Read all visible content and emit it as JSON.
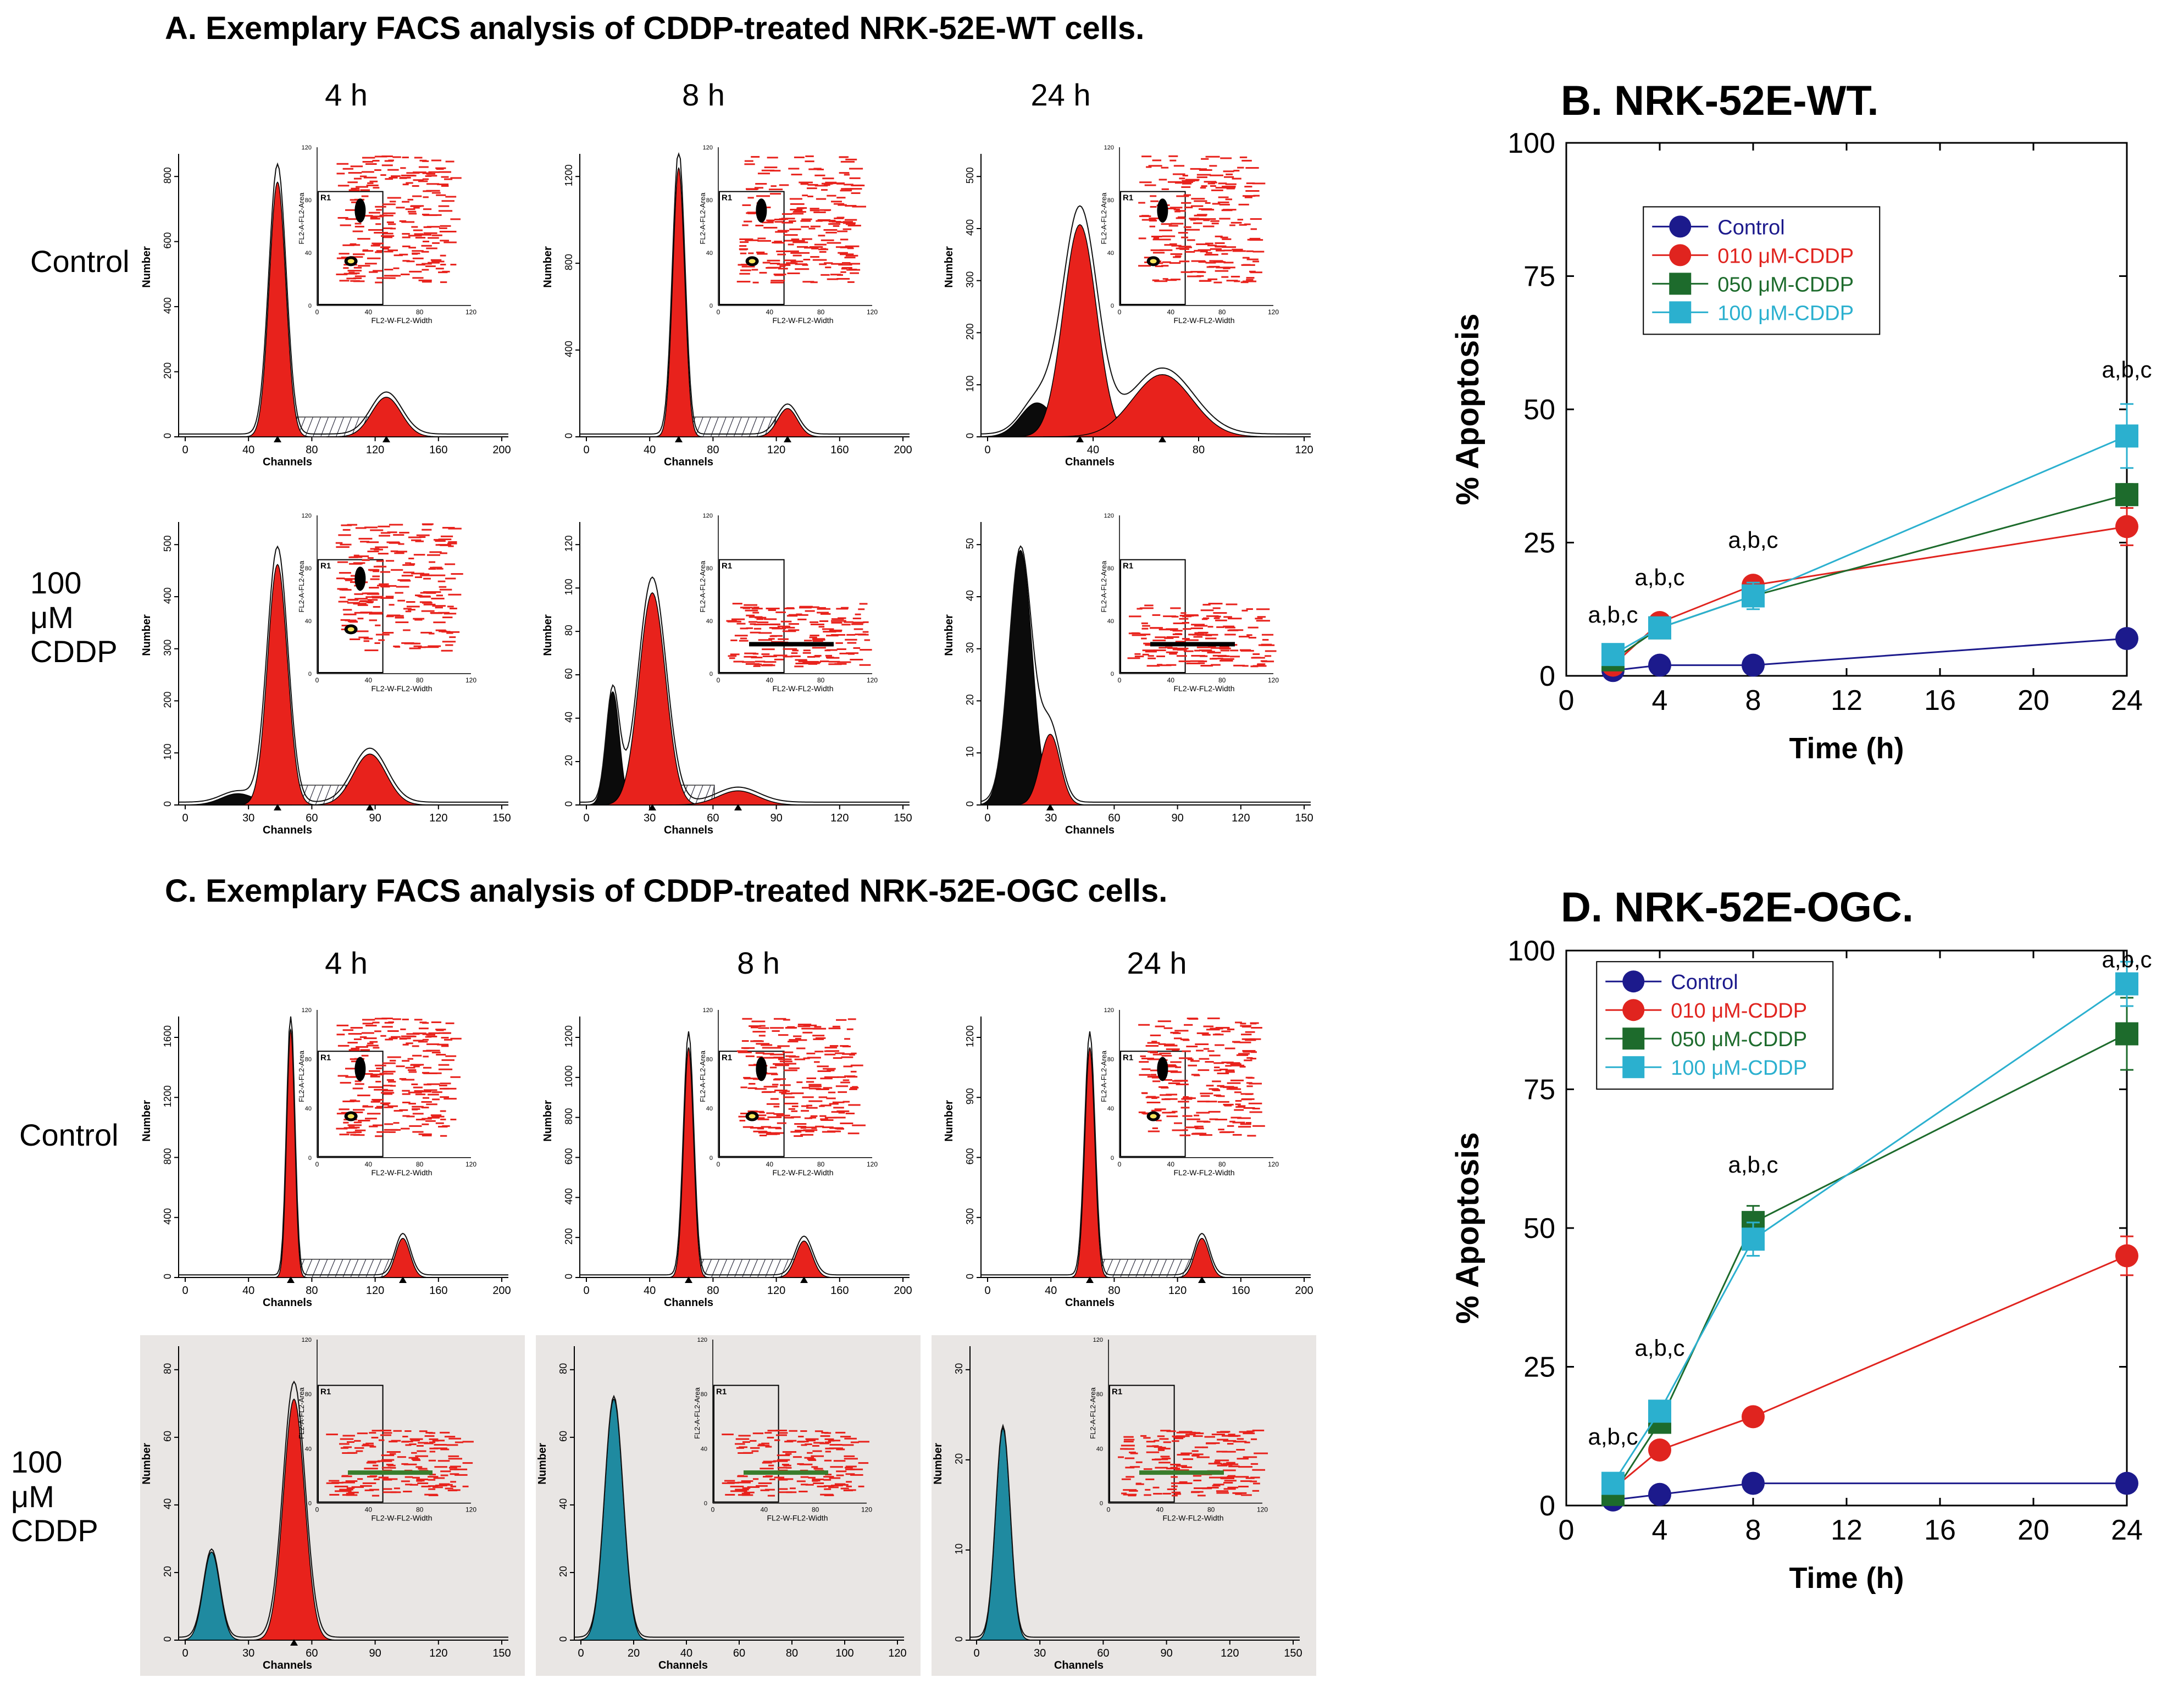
{
  "panelA": {
    "title": "A. Exemplary FACS analysis of CDDP-treated NRK-52E-WT cells.",
    "columns": [
      "4 h",
      "8 h",
      "24 h"
    ],
    "rows": [
      "Control",
      "100 μM CDDP"
    ],
    "histograms": [
      {
        "id": "a-ctrl-4",
        "xticks": [
          "0",
          "40",
          "80",
          "120",
          "160",
          "200"
        ],
        "yticks": [
          "0",
          "200",
          "400",
          "600",
          "800"
        ]
      },
      {
        "id": "a-ctrl-8",
        "xticks": [
          "0",
          "40",
          "80",
          "120",
          "160",
          "200"
        ],
        "yticks": [
          "0",
          "400",
          "800",
          "1200"
        ]
      },
      {
        "id": "a-ctrl-24",
        "xticks": [
          "0",
          "40",
          "80",
          "120"
        ],
        "yticks": [
          "0",
          "100",
          "200",
          "300",
          "400",
          "500"
        ]
      },
      {
        "id": "a-cddp-4",
        "xticks": [
          "0",
          "30",
          "60",
          "90",
          "120",
          "150"
        ],
        "yticks": [
          "0",
          "100",
          "200",
          "300",
          "400",
          "500"
        ]
      },
      {
        "id": "a-cddp-8",
        "xticks": [
          "0",
          "30",
          "60",
          "90",
          "120",
          "150"
        ],
        "yticks": [
          "0",
          "20",
          "40",
          "60",
          "80",
          "100",
          "120"
        ]
      },
      {
        "id": "a-cddp-24",
        "xticks": [
          "0",
          "30",
          "60",
          "90",
          "120",
          "150"
        ],
        "yticks": [
          "0",
          "10",
          "20",
          "30",
          "40",
          "50"
        ]
      }
    ]
  },
  "panelC": {
    "title": "C. Exemplary FACS analysis of CDDP-treated NRK-52E-OGC cells.",
    "columns": [
      "4 h",
      "8 h",
      "24 h"
    ],
    "rows": [
      "Control",
      "100 μM CDDP"
    ],
    "histograms": [
      {
        "id": "c-ctrl-4",
        "xticks": [
          "0",
          "40",
          "80",
          "120",
          "160",
          "200"
        ],
        "yticks": [
          "0",
          "400",
          "800",
          "1200",
          "1600"
        ]
      },
      {
        "id": "c-ctrl-8",
        "xticks": [
          "0",
          "40",
          "80",
          "120",
          "160",
          "200"
        ],
        "yticks": [
          "0",
          "200",
          "400",
          "600",
          "800",
          "1000",
          "1200"
        ]
      },
      {
        "id": "c-ctrl-24",
        "xticks": [
          "0",
          "40",
          "80",
          "120",
          "160",
          "200"
        ],
        "yticks": [
          "0",
          "300",
          "600",
          "900",
          "1200"
        ]
      },
      {
        "id": "c-cddp-4",
        "xticks": [
          "0",
          "30",
          "60",
          "90",
          "120",
          "150"
        ],
        "yticks": [
          "0",
          "20",
          "40",
          "60",
          "80"
        ]
      },
      {
        "id": "c-cddp-8",
        "xticks": [
          "0",
          "20",
          "40",
          "60",
          "80",
          "100",
          "120"
        ],
        "yticks": [
          "0",
          "20",
          "40",
          "60",
          "80"
        ]
      },
      {
        "id": "c-cddp-24",
        "xticks": [
          "0",
          "30",
          "60",
          "90",
          "120",
          "150"
        ],
        "yticks": [
          "0",
          "10",
          "20",
          "30"
        ]
      }
    ]
  },
  "axis_text": {
    "hist_xlabel": "Channels",
    "hist_ylabel": "Number",
    "inset_xlabel": "FL2-W-FL2-Width",
    "inset_ylabel": "FL2-A-FL2-Area",
    "gate_label": "R1",
    "inset_xticks": [
      "0",
      "40",
      "80",
      "120"
    ],
    "inset_yticks": [
      "0",
      "40",
      "80",
      "120"
    ]
  },
  "chart_data": [
    {
      "id": "B",
      "type": "line",
      "title": "B. NRK-52E-WT.",
      "xlabel": "Time (h)",
      "ylabel": "% Apoptosis",
      "xlim": [
        0,
        24
      ],
      "ylim": [
        0,
        100
      ],
      "xticks": [
        0,
        4,
        8,
        12,
        16,
        20,
        24
      ],
      "yticks": [
        0,
        25,
        50,
        75,
        100
      ],
      "x": [
        2,
        4,
        8,
        24
      ],
      "series": [
        {
          "name": "Control",
          "marker": "circle",
          "color": "#1c1a8c",
          "values": [
            1,
            2,
            2,
            7
          ],
          "err": [
            0.3,
            0.4,
            0.4,
            0.6
          ]
        },
        {
          "name": "010 μM-CDDP",
          "marker": "circle",
          "color": "#e0241f",
          "values": [
            2,
            10,
            17,
            28
          ],
          "err": [
            0.5,
            1.0,
            1.5,
            3.5
          ]
        },
        {
          "name": "050 μM-CDDP",
          "marker": "square",
          "color": "#1d6b2c",
          "values": [
            3,
            9,
            15,
            34
          ],
          "err": [
            0.5,
            1.0,
            1.5,
            2.0
          ]
        },
        {
          "name": "100 μM-CDDP",
          "marker": "square",
          "color": "#2bb0cf",
          "values": [
            4,
            9,
            15,
            45
          ],
          "err": [
            0.5,
            1.5,
            2.5,
            6.0
          ]
        }
      ],
      "annotations": [
        {
          "x": 2,
          "y": 10,
          "text": "a,b,c"
        },
        {
          "x": 4,
          "y": 17,
          "text": "a,b,c"
        },
        {
          "x": 8,
          "y": 24,
          "text": "a,b,c"
        },
        {
          "x": 24,
          "y": 56,
          "text": "a,b,c"
        }
      ],
      "legend": "upper-left"
    },
    {
      "id": "D",
      "type": "line",
      "title": "D. NRK-52E-OGC.",
      "xlabel": "Time (h)",
      "ylabel": "% Apoptosis",
      "xlim": [
        0,
        24
      ],
      "ylim": [
        0,
        100
      ],
      "xticks": [
        0,
        4,
        8,
        12,
        16,
        20,
        24
      ],
      "yticks": [
        0,
        25,
        50,
        75,
        100
      ],
      "x": [
        2,
        4,
        8,
        24
      ],
      "series": [
        {
          "name": "Control",
          "marker": "circle",
          "color": "#1c1a8c",
          "values": [
            1,
            2,
            4,
            4
          ],
          "err": [
            0.3,
            0.5,
            0.6,
            0.6
          ]
        },
        {
          "name": "010 μM-CDDP",
          "marker": "circle",
          "color": "#e0241f",
          "values": [
            3,
            10,
            16,
            45
          ],
          "err": [
            0.5,
            1.0,
            1.5,
            3.5
          ]
        },
        {
          "name": "050 μM-CDDP",
          "marker": "square",
          "color": "#1d6b2c",
          "values": [
            2,
            15,
            51,
            85
          ],
          "err": [
            0.5,
            1.5,
            3.0,
            6.5
          ]
        },
        {
          "name": "100 μM-CDDP",
          "marker": "square",
          "color": "#2bb0cf",
          "values": [
            4,
            17,
            48,
            94
          ],
          "err": [
            0.5,
            1.5,
            3.0,
            4.0
          ]
        }
      ],
      "annotations": [
        {
          "x": 2,
          "y": 11,
          "text": "a,b,c"
        },
        {
          "x": 4,
          "y": 27,
          "text": "a,b,c"
        },
        {
          "x": 8,
          "y": 60,
          "text": "a,b,c"
        },
        {
          "x": 24,
          "y": 97,
          "text": "a,b,c"
        }
      ],
      "legend": "upper-left"
    }
  ]
}
